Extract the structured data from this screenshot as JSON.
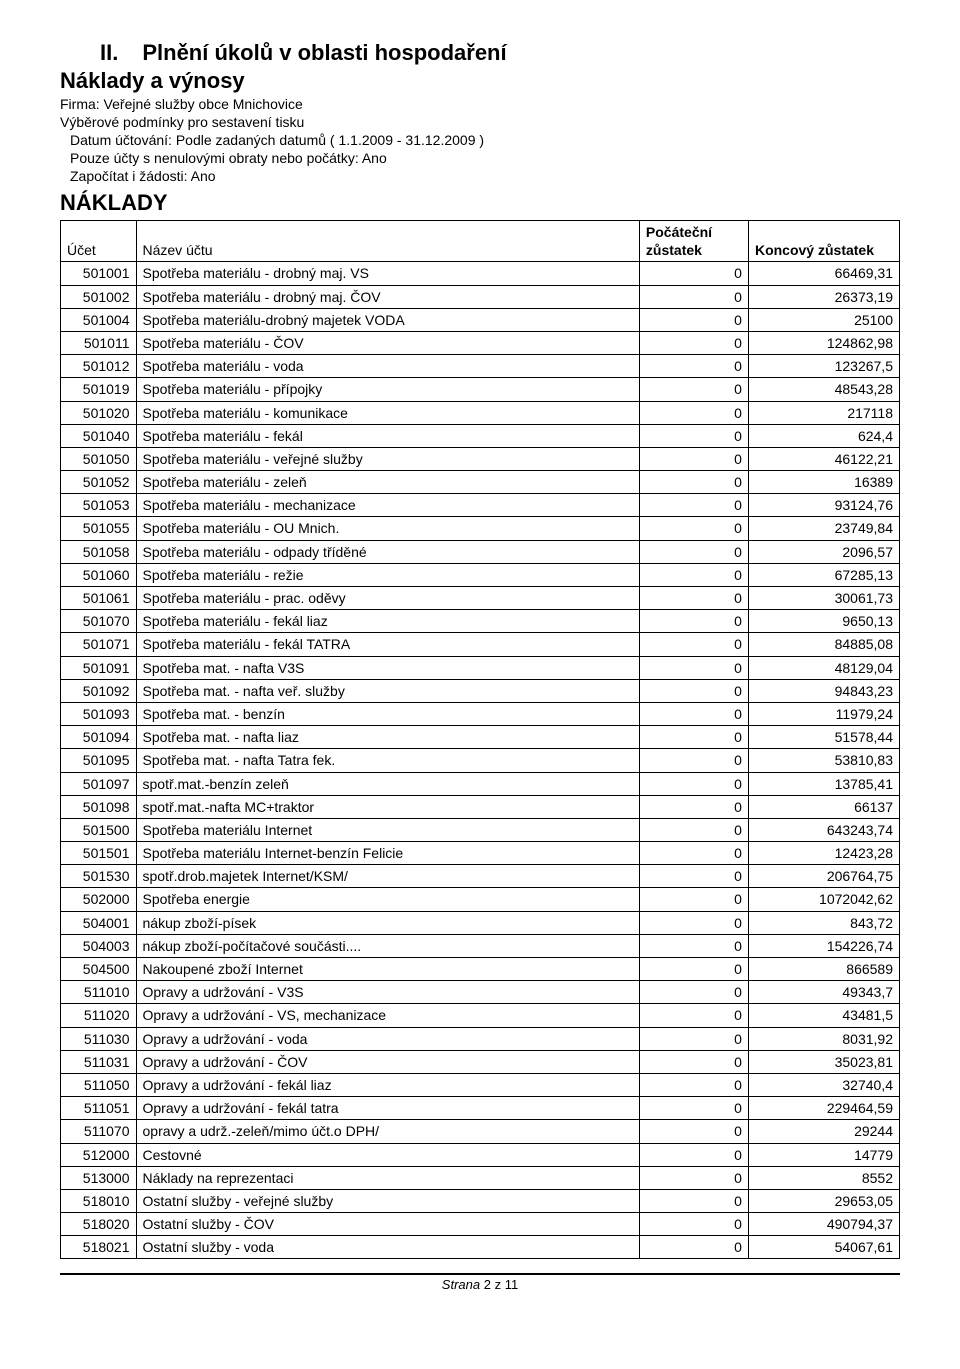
{
  "header": {
    "section_number": "II.",
    "section_title": "Plnění  úkolů v oblasti  hospodaření",
    "subtitle": "Náklady a výnosy",
    "firma": "Firma: Veřejné služby obce Mnichovice",
    "podminky": "Výběrové podmínky pro sestavení tisku",
    "datum": "Datum účtování: Podle zadaných datumů ( 1.1.2009 - 31.12.2009 )",
    "pouze": "Pouze účty s nenulovými obraty nebo počátky: Ano",
    "zapocitat": "Započítat i žádosti: Ano",
    "naklady": "NÁKLADY"
  },
  "columns": {
    "ucet": "Účet",
    "nazev": "Název účtu",
    "pocatecni": "Počáteční zůstatek",
    "koncovy": "Koncový zůstatek"
  },
  "rows": [
    {
      "ucet": "501001",
      "nazev": "Spotřeba materiálu - drobný maj. VS",
      "poc": "0",
      "kon": "66469,31"
    },
    {
      "ucet": "501002",
      "nazev": "Spotřeba materiálu - drobný maj. ČOV",
      "poc": "0",
      "kon": "26373,19"
    },
    {
      "ucet": "501004",
      "nazev": "Spotřeba materiálu-drobný majetek VODA",
      "poc": "0",
      "kon": "25100"
    },
    {
      "ucet": "501011",
      "nazev": "Spotřeba materiálu - ČOV",
      "poc": "0",
      "kon": "124862,98"
    },
    {
      "ucet": "501012",
      "nazev": "Spotřeba materiálu - voda",
      "poc": "0",
      "kon": "123267,5"
    },
    {
      "ucet": "501019",
      "nazev": "Spotřeba materiálu - přípojky",
      "poc": "0",
      "kon": "48543,28"
    },
    {
      "ucet": "501020",
      "nazev": "Spotřeba materiálu - komunikace",
      "poc": "0",
      "kon": "217118"
    },
    {
      "ucet": "501040",
      "nazev": "Spotřeba materiálu - fekál",
      "poc": "0",
      "kon": "624,4"
    },
    {
      "ucet": "501050",
      "nazev": "Spotřeba materiálu - veřejné služby",
      "poc": "0",
      "kon": "46122,21"
    },
    {
      "ucet": "501052",
      "nazev": "Spotřeba materiálu - zeleň",
      "poc": "0",
      "kon": "16389"
    },
    {
      "ucet": "501053",
      "nazev": "Spotřeba materiálu - mechanizace",
      "poc": "0",
      "kon": "93124,76"
    },
    {
      "ucet": "501055",
      "nazev": "Spotřeba materiálu - OU Mnich.",
      "poc": "0",
      "kon": "23749,84"
    },
    {
      "ucet": "501058",
      "nazev": "Spotřeba materiálu - odpady tříděné",
      "poc": "0",
      "kon": "2096,57"
    },
    {
      "ucet": "501060",
      "nazev": "Spotřeba materiálu - režie",
      "poc": "0",
      "kon": "67285,13"
    },
    {
      "ucet": "501061",
      "nazev": "Spotřeba materiálu - prac. oděvy",
      "poc": "0",
      "kon": "30061,73"
    },
    {
      "ucet": "501070",
      "nazev": "Spotřeba materiálu - fekál liaz",
      "poc": "0",
      "kon": "9650,13"
    },
    {
      "ucet": "501071",
      "nazev": "Spotřeba materiálu - fekál TATRA",
      "poc": "0",
      "kon": "84885,08"
    },
    {
      "ucet": "501091",
      "nazev": "Spotřeba mat. - nafta V3S",
      "poc": "0",
      "kon": "48129,04"
    },
    {
      "ucet": "501092",
      "nazev": "Spotřeba mat. - nafta veř. služby",
      "poc": "0",
      "kon": "94843,23"
    },
    {
      "ucet": "501093",
      "nazev": "Spotřeba mat. - benzín",
      "poc": "0",
      "kon": "11979,24"
    },
    {
      "ucet": "501094",
      "nazev": "Spotřeba mat. - nafta liaz",
      "poc": "0",
      "kon": "51578,44"
    },
    {
      "ucet": "501095",
      "nazev": "Spotřeba mat. - nafta Tatra fek.",
      "poc": "0",
      "kon": "53810,83"
    },
    {
      "ucet": "501097",
      "nazev": "spotř.mat.-benzín zeleň",
      "poc": "0",
      "kon": "13785,41"
    },
    {
      "ucet": "501098",
      "nazev": "spotř.mat.-nafta MC+traktor",
      "poc": "0",
      "kon": "66137"
    },
    {
      "ucet": "501500",
      "nazev": "Spotřeba materiálu Internet",
      "poc": "0",
      "kon": "643243,74"
    },
    {
      "ucet": "501501",
      "nazev": "Spotřeba materiálu Internet-benzín Felicie",
      "poc": "0",
      "kon": "12423,28"
    },
    {
      "ucet": "501530",
      "nazev": "spotř.drob.majetek Internet/KSM/",
      "poc": "0",
      "kon": "206764,75"
    },
    {
      "ucet": "502000",
      "nazev": "Spotřeba energie",
      "poc": "0",
      "kon": "1072042,62"
    },
    {
      "ucet": "504001",
      "nazev": "nákup zboží-písek",
      "poc": "0",
      "kon": "843,72"
    },
    {
      "ucet": "504003",
      "nazev": "nákup zboží-počítačové součásti....",
      "poc": "0",
      "kon": "154226,74"
    },
    {
      "ucet": "504500",
      "nazev": "Nakoupené zboží Internet",
      "poc": "0",
      "kon": "866589"
    },
    {
      "ucet": "511010",
      "nazev": "Opravy a udržování - V3S",
      "poc": "0",
      "kon": "49343,7"
    },
    {
      "ucet": "511020",
      "nazev": "Opravy a udržování - VS, mechanizace",
      "poc": "0",
      "kon": "43481,5"
    },
    {
      "ucet": "511030",
      "nazev": "Opravy a udržování - voda",
      "poc": "0",
      "kon": "8031,92"
    },
    {
      "ucet": "511031",
      "nazev": "Opravy a udržování - ČOV",
      "poc": "0",
      "kon": "35023,81"
    },
    {
      "ucet": "511050",
      "nazev": "Opravy a udržování - fekál liaz",
      "poc": "0",
      "kon": "32740,4"
    },
    {
      "ucet": "511051",
      "nazev": "Opravy a udržování - fekál tatra",
      "poc": "0",
      "kon": "229464,59"
    },
    {
      "ucet": "511070",
      "nazev": "opravy a udrž.-zeleň/mimo účt.o DPH/",
      "poc": "0",
      "kon": "29244"
    },
    {
      "ucet": "512000",
      "nazev": "Cestovné",
      "poc": "0",
      "kon": "14779"
    },
    {
      "ucet": "513000",
      "nazev": "Náklady na reprezentaci",
      "poc": "0",
      "kon": "8552"
    },
    {
      "ucet": "518010",
      "nazev": "Ostatní služby - veřejné služby",
      "poc": "0",
      "kon": "29653,05"
    },
    {
      "ucet": "518020",
      "nazev": "Ostatní služby - ČOV",
      "poc": "0",
      "kon": "490794,37"
    },
    {
      "ucet": "518021",
      "nazev": "Ostatní služby - voda",
      "poc": "0",
      "kon": "54067,61"
    }
  ],
  "footer": {
    "strana": "Strana ",
    "page": "2",
    "z": " z ",
    "total": "11"
  }
}
